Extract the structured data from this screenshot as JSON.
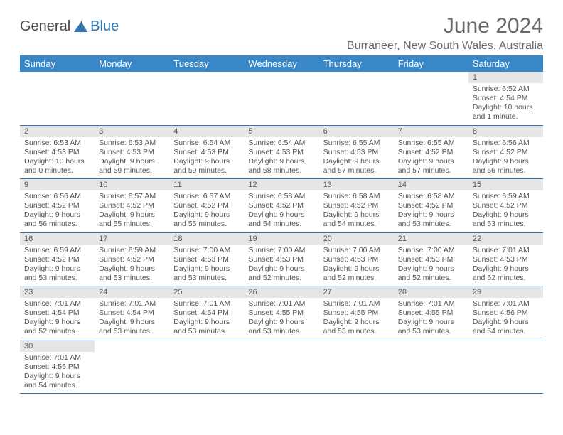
{
  "brand": {
    "part1": "General",
    "part2": "Blue"
  },
  "title": "June 2024",
  "location": "Burraneer, New South Wales, Australia",
  "colors": {
    "header_bg": "#3a87c8",
    "header_text": "#ffffff",
    "rule": "#2e75b6",
    "daynum_bg": "#e6e6e6",
    "text": "#555555",
    "title_text": "#6a6a6a"
  },
  "days_of_week": [
    "Sunday",
    "Monday",
    "Tuesday",
    "Wednesday",
    "Thursday",
    "Friday",
    "Saturday"
  ],
  "weeks": [
    [
      null,
      null,
      null,
      null,
      null,
      null,
      {
        "n": "1",
        "sr": "Sunrise: 6:52 AM",
        "ss": "Sunset: 4:54 PM",
        "d1": "Daylight: 10 hours",
        "d2": "and 1 minute."
      }
    ],
    [
      {
        "n": "2",
        "sr": "Sunrise: 6:53 AM",
        "ss": "Sunset: 4:53 PM",
        "d1": "Daylight: 10 hours",
        "d2": "and 0 minutes."
      },
      {
        "n": "3",
        "sr": "Sunrise: 6:53 AM",
        "ss": "Sunset: 4:53 PM",
        "d1": "Daylight: 9 hours",
        "d2": "and 59 minutes."
      },
      {
        "n": "4",
        "sr": "Sunrise: 6:54 AM",
        "ss": "Sunset: 4:53 PM",
        "d1": "Daylight: 9 hours",
        "d2": "and 59 minutes."
      },
      {
        "n": "5",
        "sr": "Sunrise: 6:54 AM",
        "ss": "Sunset: 4:53 PM",
        "d1": "Daylight: 9 hours",
        "d2": "and 58 minutes."
      },
      {
        "n": "6",
        "sr": "Sunrise: 6:55 AM",
        "ss": "Sunset: 4:53 PM",
        "d1": "Daylight: 9 hours",
        "d2": "and 57 minutes."
      },
      {
        "n": "7",
        "sr": "Sunrise: 6:55 AM",
        "ss": "Sunset: 4:52 PM",
        "d1": "Daylight: 9 hours",
        "d2": "and 57 minutes."
      },
      {
        "n": "8",
        "sr": "Sunrise: 6:56 AM",
        "ss": "Sunset: 4:52 PM",
        "d1": "Daylight: 9 hours",
        "d2": "and 56 minutes."
      }
    ],
    [
      {
        "n": "9",
        "sr": "Sunrise: 6:56 AM",
        "ss": "Sunset: 4:52 PM",
        "d1": "Daylight: 9 hours",
        "d2": "and 56 minutes."
      },
      {
        "n": "10",
        "sr": "Sunrise: 6:57 AM",
        "ss": "Sunset: 4:52 PM",
        "d1": "Daylight: 9 hours",
        "d2": "and 55 minutes."
      },
      {
        "n": "11",
        "sr": "Sunrise: 6:57 AM",
        "ss": "Sunset: 4:52 PM",
        "d1": "Daylight: 9 hours",
        "d2": "and 55 minutes."
      },
      {
        "n": "12",
        "sr": "Sunrise: 6:58 AM",
        "ss": "Sunset: 4:52 PM",
        "d1": "Daylight: 9 hours",
        "d2": "and 54 minutes."
      },
      {
        "n": "13",
        "sr": "Sunrise: 6:58 AM",
        "ss": "Sunset: 4:52 PM",
        "d1": "Daylight: 9 hours",
        "d2": "and 54 minutes."
      },
      {
        "n": "14",
        "sr": "Sunrise: 6:58 AM",
        "ss": "Sunset: 4:52 PM",
        "d1": "Daylight: 9 hours",
        "d2": "and 53 minutes."
      },
      {
        "n": "15",
        "sr": "Sunrise: 6:59 AM",
        "ss": "Sunset: 4:52 PM",
        "d1": "Daylight: 9 hours",
        "d2": "and 53 minutes."
      }
    ],
    [
      {
        "n": "16",
        "sr": "Sunrise: 6:59 AM",
        "ss": "Sunset: 4:52 PM",
        "d1": "Daylight: 9 hours",
        "d2": "and 53 minutes."
      },
      {
        "n": "17",
        "sr": "Sunrise: 6:59 AM",
        "ss": "Sunset: 4:52 PM",
        "d1": "Daylight: 9 hours",
        "d2": "and 53 minutes."
      },
      {
        "n": "18",
        "sr": "Sunrise: 7:00 AM",
        "ss": "Sunset: 4:53 PM",
        "d1": "Daylight: 9 hours",
        "d2": "and 53 minutes."
      },
      {
        "n": "19",
        "sr": "Sunrise: 7:00 AM",
        "ss": "Sunset: 4:53 PM",
        "d1": "Daylight: 9 hours",
        "d2": "and 52 minutes."
      },
      {
        "n": "20",
        "sr": "Sunrise: 7:00 AM",
        "ss": "Sunset: 4:53 PM",
        "d1": "Daylight: 9 hours",
        "d2": "and 52 minutes."
      },
      {
        "n": "21",
        "sr": "Sunrise: 7:00 AM",
        "ss": "Sunset: 4:53 PM",
        "d1": "Daylight: 9 hours",
        "d2": "and 52 minutes."
      },
      {
        "n": "22",
        "sr": "Sunrise: 7:01 AM",
        "ss": "Sunset: 4:53 PM",
        "d1": "Daylight: 9 hours",
        "d2": "and 52 minutes."
      }
    ],
    [
      {
        "n": "23",
        "sr": "Sunrise: 7:01 AM",
        "ss": "Sunset: 4:54 PM",
        "d1": "Daylight: 9 hours",
        "d2": "and 52 minutes."
      },
      {
        "n": "24",
        "sr": "Sunrise: 7:01 AM",
        "ss": "Sunset: 4:54 PM",
        "d1": "Daylight: 9 hours",
        "d2": "and 53 minutes."
      },
      {
        "n": "25",
        "sr": "Sunrise: 7:01 AM",
        "ss": "Sunset: 4:54 PM",
        "d1": "Daylight: 9 hours",
        "d2": "and 53 minutes."
      },
      {
        "n": "26",
        "sr": "Sunrise: 7:01 AM",
        "ss": "Sunset: 4:55 PM",
        "d1": "Daylight: 9 hours",
        "d2": "and 53 minutes."
      },
      {
        "n": "27",
        "sr": "Sunrise: 7:01 AM",
        "ss": "Sunset: 4:55 PM",
        "d1": "Daylight: 9 hours",
        "d2": "and 53 minutes."
      },
      {
        "n": "28",
        "sr": "Sunrise: 7:01 AM",
        "ss": "Sunset: 4:55 PM",
        "d1": "Daylight: 9 hours",
        "d2": "and 53 minutes."
      },
      {
        "n": "29",
        "sr": "Sunrise: 7:01 AM",
        "ss": "Sunset: 4:56 PM",
        "d1": "Daylight: 9 hours",
        "d2": "and 54 minutes."
      }
    ],
    [
      {
        "n": "30",
        "sr": "Sunrise: 7:01 AM",
        "ss": "Sunset: 4:56 PM",
        "d1": "Daylight: 9 hours",
        "d2": "and 54 minutes."
      },
      null,
      null,
      null,
      null,
      null,
      null
    ]
  ]
}
